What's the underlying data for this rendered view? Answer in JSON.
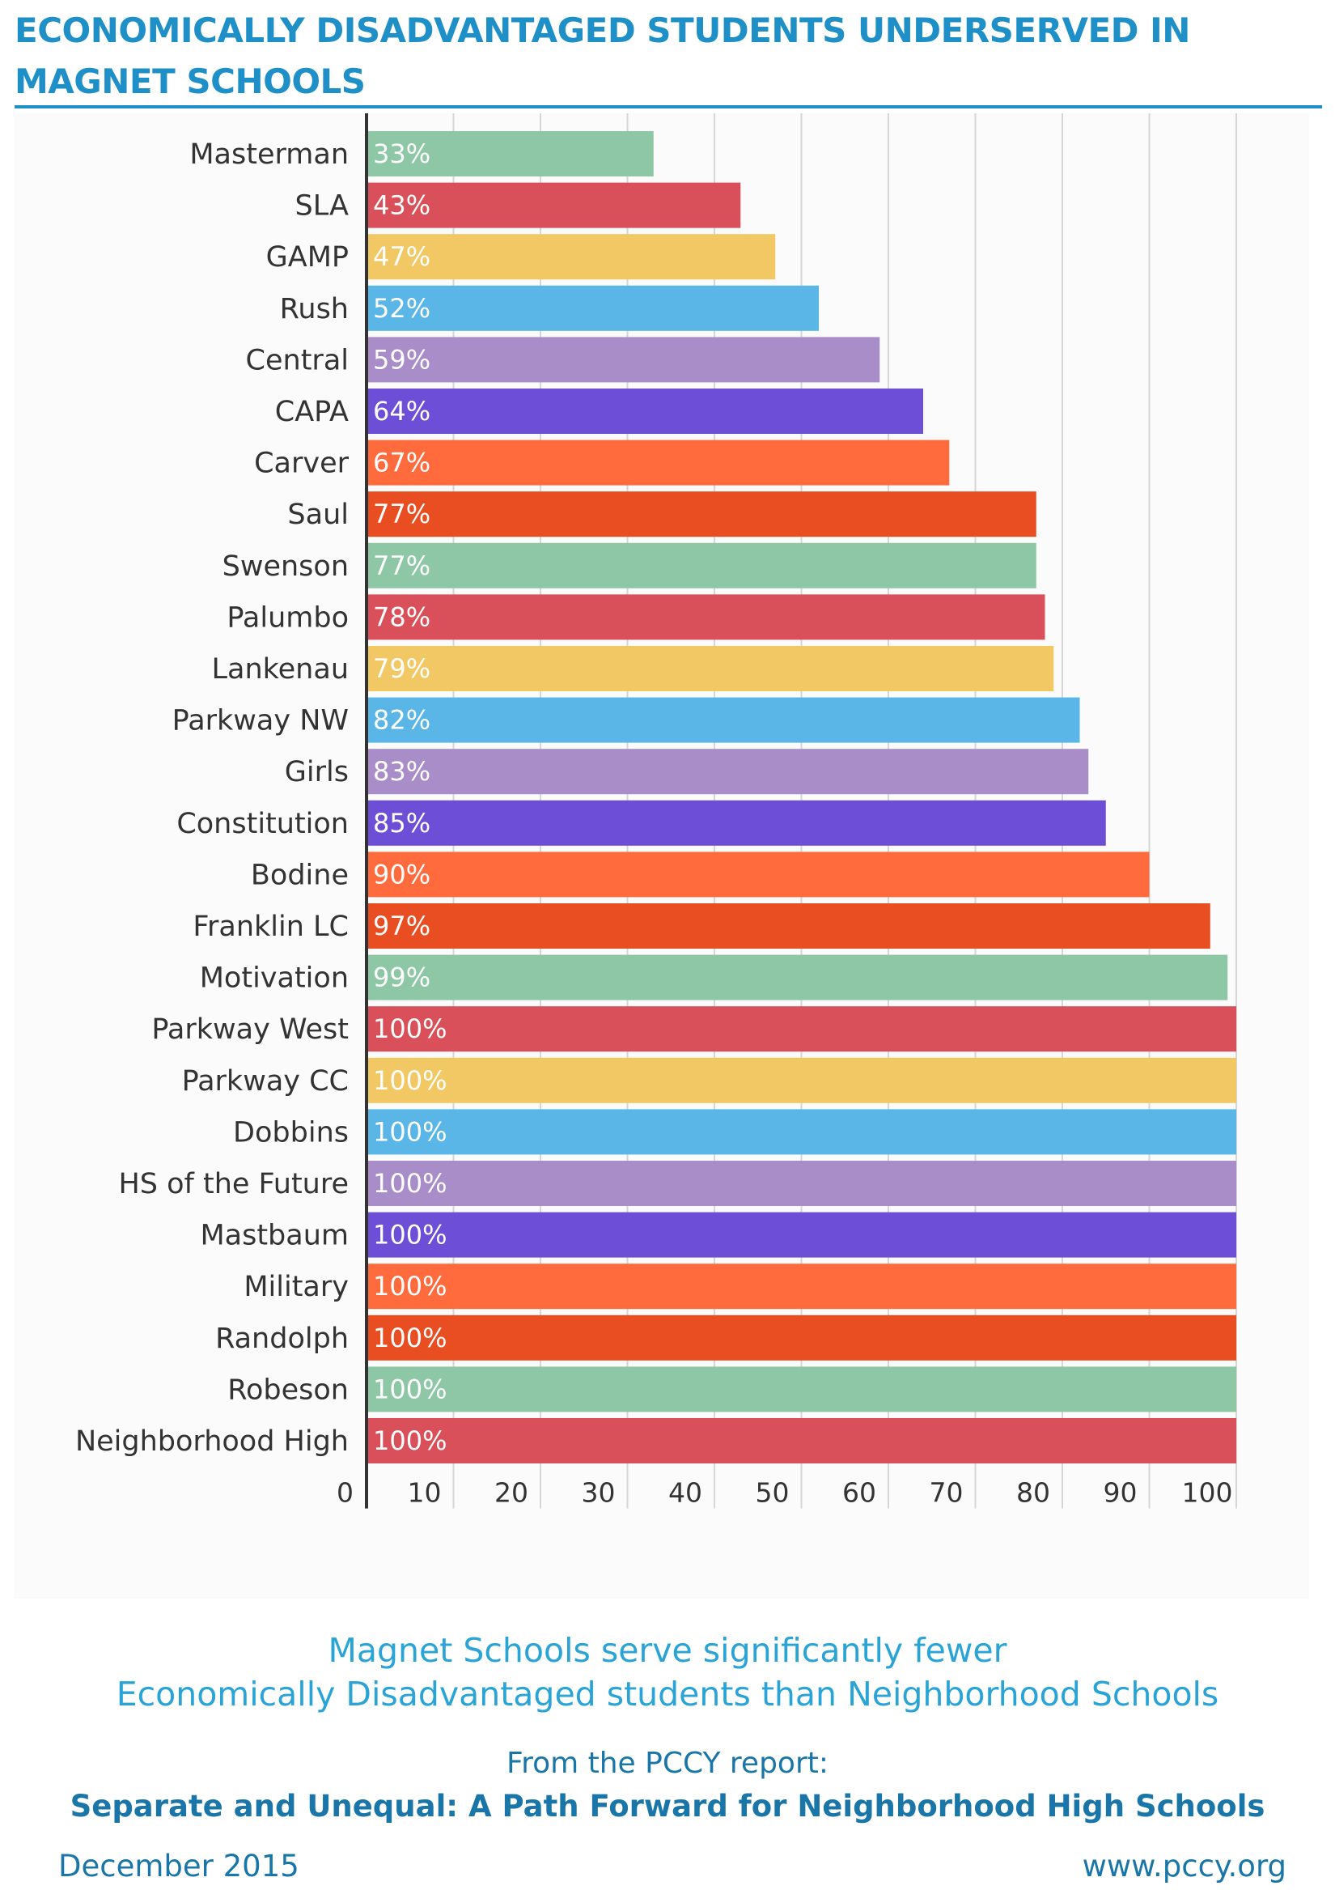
{
  "header": {
    "title": "ECONOMICALLY DISADVANTAGED STUDENTS UNDERSERVED IN MAGNET SCHOOLS"
  },
  "chart_data": {
    "type": "bar",
    "orientation": "horizontal",
    "categories": [
      "Masterman",
      "SLA",
      "GAMP",
      "Rush",
      "Central",
      "CAPA",
      "Carver",
      "Saul",
      "Swenson",
      "Palumbo",
      "Lankenau",
      "Parkway NW",
      "Girls",
      "Constitution",
      "Bodine",
      "Franklin LC",
      "Motivation",
      "Parkway West",
      "Parkway CC",
      "Dobbins",
      "HS of the Future",
      "Mastbaum",
      "Military",
      "Randolph",
      "Robeson",
      "Neighborhood High"
    ],
    "values": [
      33,
      43,
      47,
      52,
      59,
      64,
      67,
      77,
      77,
      78,
      79,
      82,
      83,
      85,
      90,
      97,
      99,
      100,
      100,
      100,
      100,
      100,
      100,
      100,
      100,
      100
    ],
    "value_labels": [
      "33%",
      "43%",
      "47%",
      "52%",
      "59%",
      "64%",
      "67%",
      "77%",
      "77%",
      "78%",
      "79%",
      "82%",
      "83%",
      "85%",
      "90%",
      "97%",
      "99%",
      "100%",
      "100%",
      "100%",
      "100%",
      "100%",
      "100%",
      "100%",
      "100%",
      "100%"
    ],
    "bar_colors": [
      "#8ec7a6",
      "#d9505a",
      "#f2c864",
      "#5ab6e6",
      "#a88dc9",
      "#6c4fd6",
      "#ff6b3d",
      "#e84e22",
      "#8ec7a6",
      "#d9505a",
      "#f2c864",
      "#5ab6e6",
      "#a88dc9",
      "#6c4fd6",
      "#ff6b3d",
      "#e84e22",
      "#8ec7a6",
      "#d9505a",
      "#f2c864",
      "#5ab6e6",
      "#a88dc9",
      "#6c4fd6",
      "#ff6b3d",
      "#e84e22",
      "#8ec7a6",
      "#d9505a"
    ],
    "xticks": [
      0,
      10,
      20,
      30,
      40,
      50,
      60,
      70,
      80,
      90,
      100
    ],
    "xlim": [
      0,
      100
    ],
    "grid": true,
    "title": "",
    "xlabel": "",
    "ylabel": ""
  },
  "caption": {
    "line1": "Magnet Schools serve significantly fewer",
    "line2": "Economically Disadvantaged students than Neighborhood Schools"
  },
  "source": {
    "intro": "From the PCCY report:",
    "title": "Separate and Unequal: A Path Forward for Neighborhood High Schools"
  },
  "footer": {
    "date": "December 2015",
    "url": "www.pccy.org"
  }
}
